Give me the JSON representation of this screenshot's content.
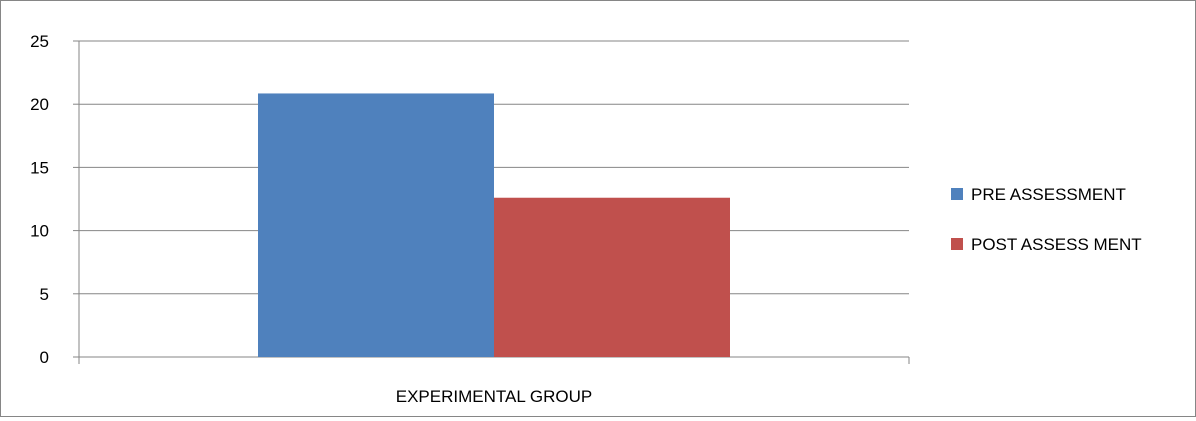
{
  "chart_data": {
    "type": "bar",
    "categories": [
      "EXPERIMENTAL GROUP"
    ],
    "series": [
      {
        "name": "PRE ASSESSMENT",
        "values": [
          20.85
        ],
        "color": "#4F81BD"
      },
      {
        "name": "POST ASSESS MENT",
        "values": [
          12.6
        ],
        "color": "#C0504D"
      }
    ],
    "ylim": [
      0,
      25
    ],
    "yticks": [
      0,
      5,
      10,
      15,
      20,
      25
    ],
    "ytick_labels": [
      "0",
      "5",
      "10",
      "15",
      "20",
      "25"
    ],
    "grid": true,
    "legend_position": "right",
    "title": "",
    "xlabel": "",
    "ylabel": ""
  }
}
